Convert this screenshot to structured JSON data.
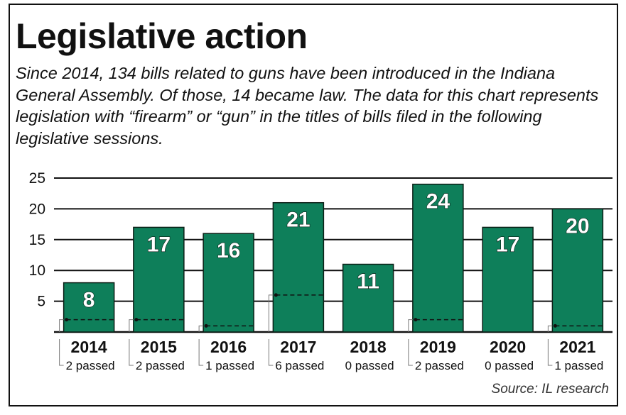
{
  "title": "Legislative action",
  "subtitle": "Since 2014, 134 bills related to guns have been introduced in the Indiana General Assembly. Of those, 14 became law. The data for this chart represents legislation with “firearm” or “gun” in the titles of bills filed in the following legislative sessions.",
  "source": "Source: IL research",
  "colors": {
    "bar": "#0e7f5a",
    "bar_outline": "#0b1f16",
    "grid": "#111111"
  },
  "chart_data": {
    "type": "bar",
    "categories": [
      "2014",
      "2015",
      "2016",
      "2017",
      "2018",
      "2019",
      "2020",
      "2021"
    ],
    "series": [
      {
        "values": [
          8,
          17,
          16,
          21,
          11,
          24,
          17,
          20
        ]
      },
      {
        "values": [
          2,
          2,
          1,
          6,
          0,
          2,
          0,
          1
        ]
      }
    ],
    "passed_labels": [
      "2 passed",
      "2 passed",
      "1 passed",
      "6 passed",
      "0 passed",
      "2 passed",
      "0 passed",
      "1 passed"
    ],
    "yticks": [
      5,
      10,
      15,
      20,
      25
    ],
    "ylim": [
      0,
      25
    ],
    "grid": true,
    "xlabel": "",
    "ylabel": ""
  }
}
